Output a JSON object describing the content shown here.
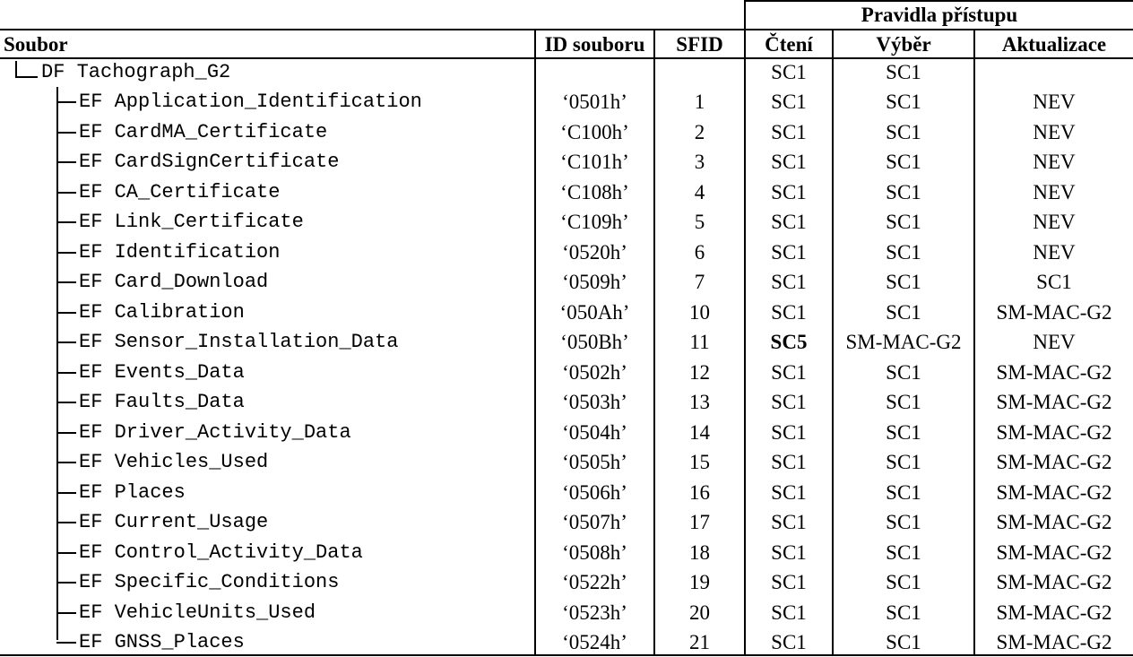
{
  "header": {
    "group_label": "Pravidla přístupu",
    "col_file": "Soubor",
    "col_id": "ID souboru",
    "col_sfid": "SFID",
    "col_read": "Čtení",
    "col_select": "Výběr",
    "col_update": "Aktualizace"
  },
  "root": {
    "name": "DF Tachograph_G2",
    "read": "SC1",
    "select": "SC1"
  },
  "rows": [
    {
      "name": "EF Application_Identification",
      "id": "‘0501h’",
      "sfid": "1",
      "read": "SC1",
      "select": "SC1",
      "update": "NEV"
    },
    {
      "name": "EF CardMA_Certificate",
      "id": "‘C100h’",
      "sfid": "2",
      "read": "SC1",
      "select": "SC1",
      "update": "NEV"
    },
    {
      "name": "EF CardSignCertificate",
      "id": "‘C101h’",
      "sfid": "3",
      "read": "SC1",
      "select": "SC1",
      "update": "NEV"
    },
    {
      "name": "EF CA_Certificate",
      "id": "‘C108h’",
      "sfid": "4",
      "read": "SC1",
      "select": "SC1",
      "update": "NEV"
    },
    {
      "name": "EF Link_Certificate",
      "id": "‘C109h’",
      "sfid": "5",
      "read": "SC1",
      "select": "SC1",
      "update": "NEV"
    },
    {
      "name": "EF Identification",
      "id": "‘0520h’",
      "sfid": "6",
      "read": "SC1",
      "select": "SC1",
      "update": "NEV"
    },
    {
      "name": "EF Card_Download",
      "id": "‘0509h’",
      "sfid": "7",
      "read": "SC1",
      "select": "SC1",
      "update": "SC1"
    },
    {
      "name": "EF Calibration",
      "id": "‘050Ah’",
      "sfid": "10",
      "read": "SC1",
      "select": "SC1",
      "update": "SM-MAC-G2"
    },
    {
      "name": "EF Sensor_Installation_Data",
      "id": "‘050Bh’",
      "sfid": "11",
      "read": "SC5",
      "select": "SM-MAC-G2",
      "update": "NEV"
    },
    {
      "name": "EF Events_Data",
      "id": "‘0502h’",
      "sfid": "12",
      "read": "SC1",
      "select": "SC1",
      "update": "SM-MAC-G2"
    },
    {
      "name": "EF Faults_Data",
      "id": "‘0503h’",
      "sfid": "13",
      "read": "SC1",
      "select": "SC1",
      "update": "SM-MAC-G2"
    },
    {
      "name": "EF Driver_Activity_Data",
      "id": "‘0504h’",
      "sfid": "14",
      "read": "SC1",
      "select": "SC1",
      "update": "SM-MAC-G2"
    },
    {
      "name": "EF Vehicles_Used",
      "id": "‘0505h’",
      "sfid": "15",
      "read": "SC1",
      "select": "SC1",
      "update": "SM-MAC-G2"
    },
    {
      "name": "EF Places",
      "id": "‘0506h’",
      "sfid": "16",
      "read": "SC1",
      "select": "SC1",
      "update": "SM-MAC-G2"
    },
    {
      "name": "EF Current_Usage",
      "id": "‘0507h’",
      "sfid": "17",
      "read": "SC1",
      "select": "SC1",
      "update": "SM-MAC-G2"
    },
    {
      "name": "EF Control_Activity_Data",
      "id": "‘0508h’",
      "sfid": "18",
      "read": "SC1",
      "select": "SC1",
      "update": "SM-MAC-G2"
    },
    {
      "name": "EF Specific_Conditions",
      "id": "‘0522h’",
      "sfid": "19",
      "read": "SC1",
      "select": "SC1",
      "update": "SM-MAC-G2"
    },
    {
      "name": "EF VehicleUnits_Used",
      "id": "‘0523h’",
      "sfid": "20",
      "read": "SC1",
      "select": "SC1",
      "update": "SM-MAC-G2"
    },
    {
      "name": "EF GNSS_Places",
      "id": "‘0524h’",
      "sfid": "21",
      "read": "SC1",
      "select": "SC1",
      "update": "SM-MAC-G2"
    }
  ],
  "bold_read_row": 8
}
